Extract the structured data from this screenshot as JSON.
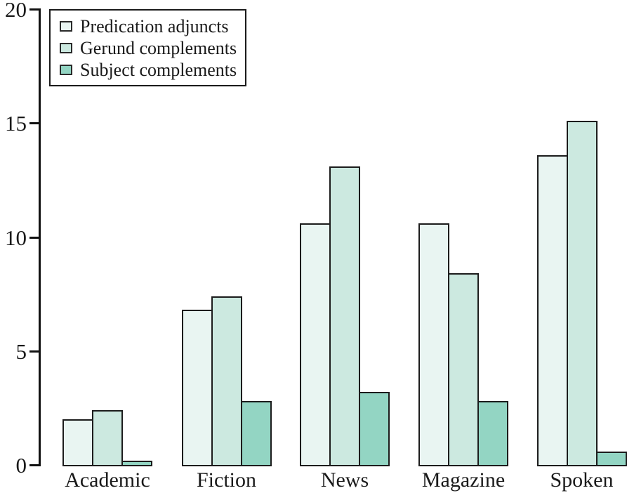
{
  "chart_data": {
    "type": "bar",
    "title": "",
    "xlabel": "",
    "ylabel": "",
    "categories": [
      "Academic",
      "Fiction",
      "News",
      "Magazine",
      "Spoken"
    ],
    "series": [
      {
        "name": "Predication adjuncts",
        "color": "#e9f5f2",
        "values": [
          2.0,
          6.8,
          10.6,
          10.6,
          13.6
        ]
      },
      {
        "name": "Gerund complements",
        "color": "#cce9e0",
        "values": [
          2.4,
          7.4,
          13.1,
          8.4,
          15.1
        ]
      },
      {
        "name": "Subject complements",
        "color": "#93d5c3",
        "values": [
          0.2,
          2.8,
          3.2,
          2.8,
          0.6
        ]
      }
    ],
    "yticks": [
      0,
      5,
      10,
      15,
      20
    ],
    "ylim": [
      0,
      20
    ],
    "grid": false,
    "legend_position": "top-left",
    "bar_border_color": "#1c1c1c",
    "axis_color": "#111111",
    "text_color": "#1a1a1a"
  }
}
